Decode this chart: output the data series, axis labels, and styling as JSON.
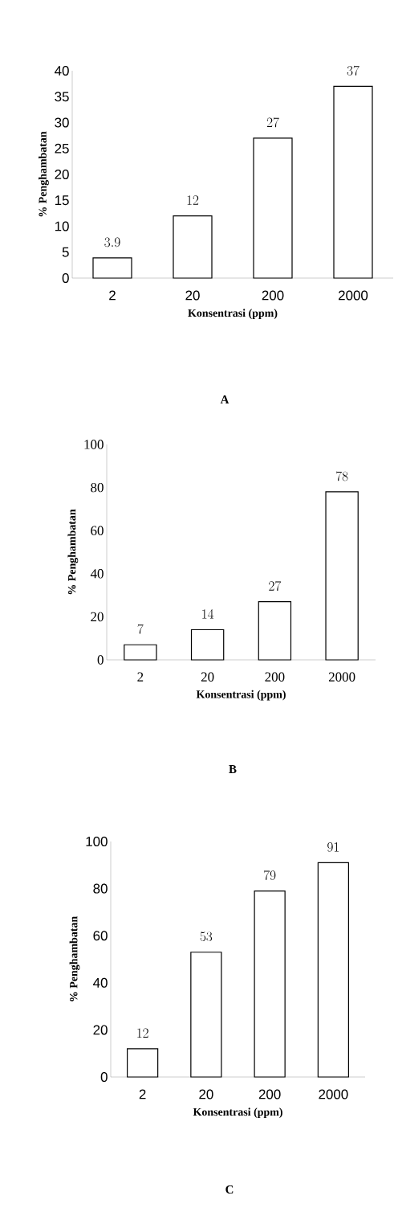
{
  "chart_data": [
    {
      "type": "bar",
      "xlabel": "Konsentrasi (ppm)",
      "ylabel": "% Penghambatan",
      "categories": [
        "2",
        "20",
        "200",
        "2000"
      ],
      "values": [
        3.9,
        12,
        27,
        37
      ],
      "color": "#ffffff",
      "ylim": [
        0,
        40
      ],
      "yticks": [
        0,
        5,
        10,
        15,
        20,
        25,
        30,
        35,
        40
      ],
      "data_labels": true,
      "annotations": [
        "A"
      ]
    },
    {
      "type": "bar",
      "xlabel": "Konsentrasi (ppm)",
      "ylabel": "% Penghambatan",
      "categories": [
        "2",
        "20",
        "200",
        "2000"
      ],
      "values": [
        7,
        14,
        27,
        78
      ],
      "color": "#ffffff",
      "ylim": [
        0,
        100
      ],
      "yticks": [
        0,
        20,
        40,
        60,
        80,
        100
      ],
      "data_labels": true,
      "annotations": [
        "B"
      ]
    },
    {
      "type": "bar",
      "xlabel": "Konsentrasi (ppm)",
      "ylabel": "% Penghambatan",
      "categories": [
        "2",
        "20",
        "200",
        "2000"
      ],
      "values": [
        12,
        53,
        79,
        91
      ],
      "color": "#ffffff",
      "ylim": [
        0,
        100
      ],
      "yticks": [
        0,
        20,
        40,
        60,
        80,
        100
      ],
      "data_labels": true,
      "annotations": [
        "C"
      ]
    }
  ]
}
